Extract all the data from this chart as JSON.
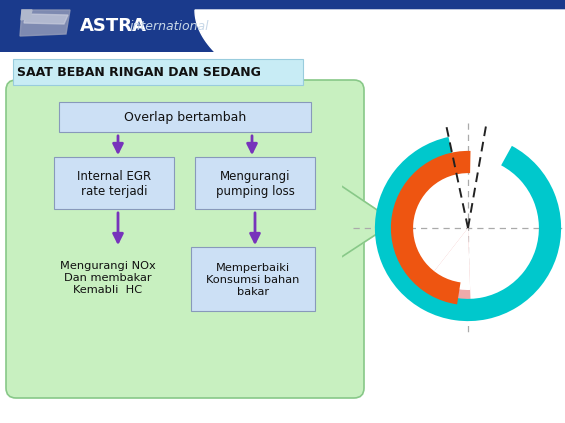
{
  "title": "SAAT BEBAN RINGAN DAN SEDANG",
  "title_bg": "#c8ecf5",
  "slide_bg": "#ffffff",
  "header_bg": "#1a3a8c",
  "green_bubble_bg": "#c8f0c0",
  "green_bubble_border": "#88c888",
  "box_bg": "#cce0f5",
  "box_border": "#8899bb",
  "arrow_color": "#7733bb",
  "box1_text": "Overlap bertambah",
  "box2_text": "Internal EGR\nrate terjadi",
  "box3_text": "Mengurangi\npumping loss",
  "box4_text": "Mengurangi NOx\nDan membakar\nKemabli  HC",
  "box5_text": "Memperbaiki\nKonsumsi bahan\nbakar",
  "astra_bold": "ASTRA",
  "astra_italic": "international",
  "teal_color": "#00c8cc",
  "orange_color": "#ee5511",
  "pink_color": "#f0aaaa",
  "dashed_color": "#222222",
  "crosshair_color": "#aaaaaa"
}
